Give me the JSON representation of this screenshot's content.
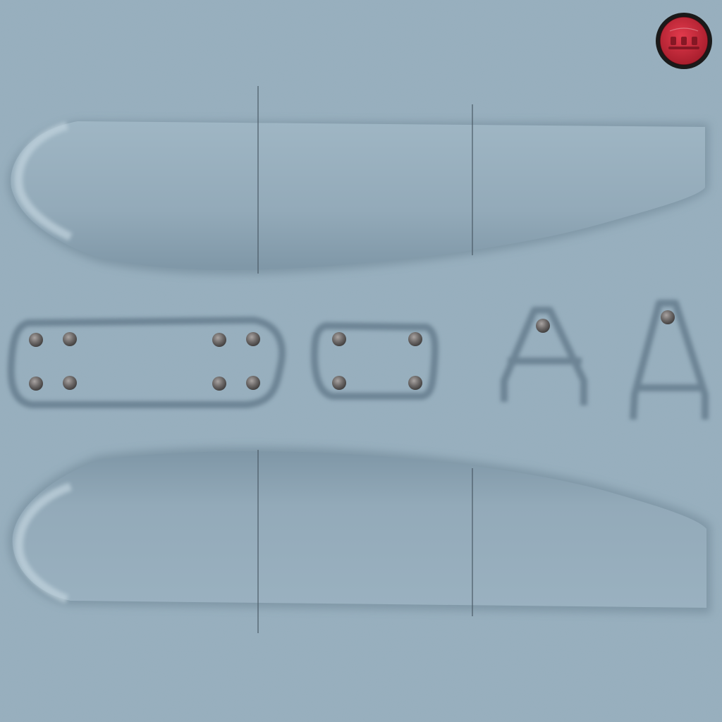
{
  "texture": {
    "surface_color": "#96aebd",
    "surface_light": "#a9bfcc",
    "surface_dark": "#6e8797",
    "rivet_color": "#6b6868",
    "panel_line_color": "#4a5a66"
  },
  "badge": {
    "icon": "red-round-badge-icon",
    "ring_color": "#1a1a1a",
    "fill_color": "#c8283a"
  },
  "parts": {
    "upper_fuselage_half": "fuselage-panel-upper",
    "lower_fuselage_half": "fuselage-panel-lower",
    "long_strut": "strut-plate-long",
    "short_strut": "strut-plate-short",
    "a_frame_left": "a-frame-left",
    "a_frame_right": "a-frame-right"
  }
}
